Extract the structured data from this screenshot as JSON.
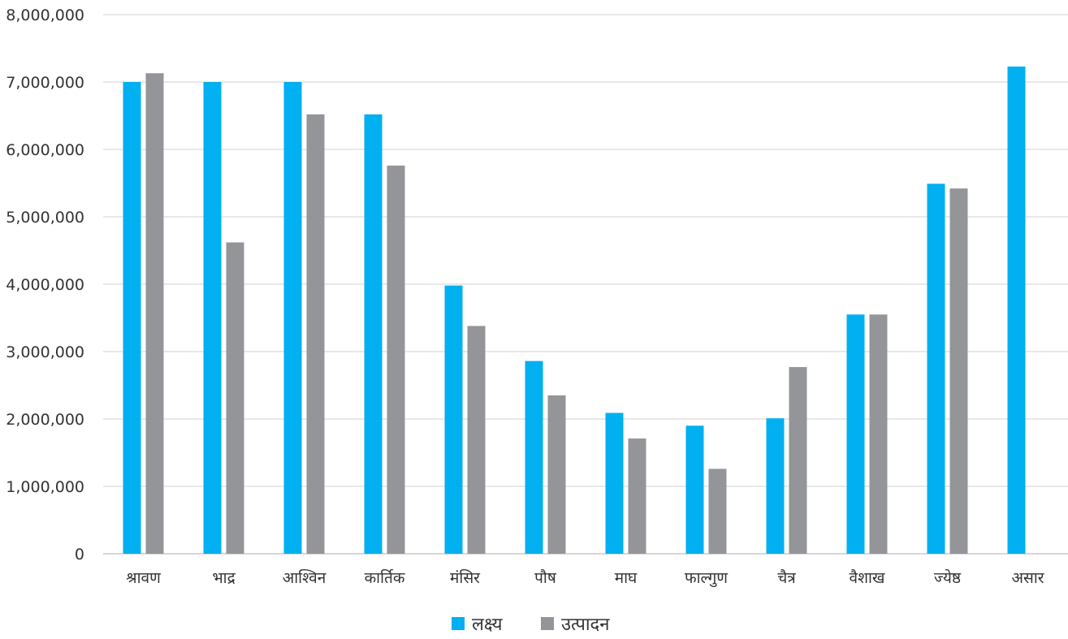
{
  "chart_data": {
    "type": "bar",
    "categories": [
      "श्रावण",
      "भाद्र",
      "आश्विन",
      "कार्तिक",
      "मंसिर",
      "पौष",
      "माघ",
      "फाल्गुण",
      "चैत्र",
      "वैशाख",
      "ज्येष्ठ",
      "असार"
    ],
    "series": [
      {
        "name": "लक्ष्य",
        "color": "#00b0f0",
        "values": [
          7000000,
          7000000,
          7000000,
          6520000,
          3980000,
          2860000,
          2090000,
          1900000,
          2010000,
          3550000,
          5490000,
          7230000
        ]
      },
      {
        "name": "उत्पादन",
        "color": "#939598",
        "values": [
          7130000,
          4620000,
          6520000,
          5760000,
          3380000,
          2350000,
          1710000,
          1260000,
          2770000,
          3550000,
          5420000,
          null
        ]
      }
    ],
    "ylim": [
      0,
      8000000
    ],
    "yticks": [
      0,
      1000000,
      2000000,
      3000000,
      4000000,
      5000000,
      6000000,
      7000000,
      8000000
    ],
    "ytick_labels": [
      "0",
      "1,000,000",
      "2,000,000",
      "3,000,000",
      "4,000,000",
      "5,000,000",
      "6,000,000",
      "7,000,000",
      "8,000,000"
    ],
    "grid": true,
    "legend_position": "bottom"
  }
}
